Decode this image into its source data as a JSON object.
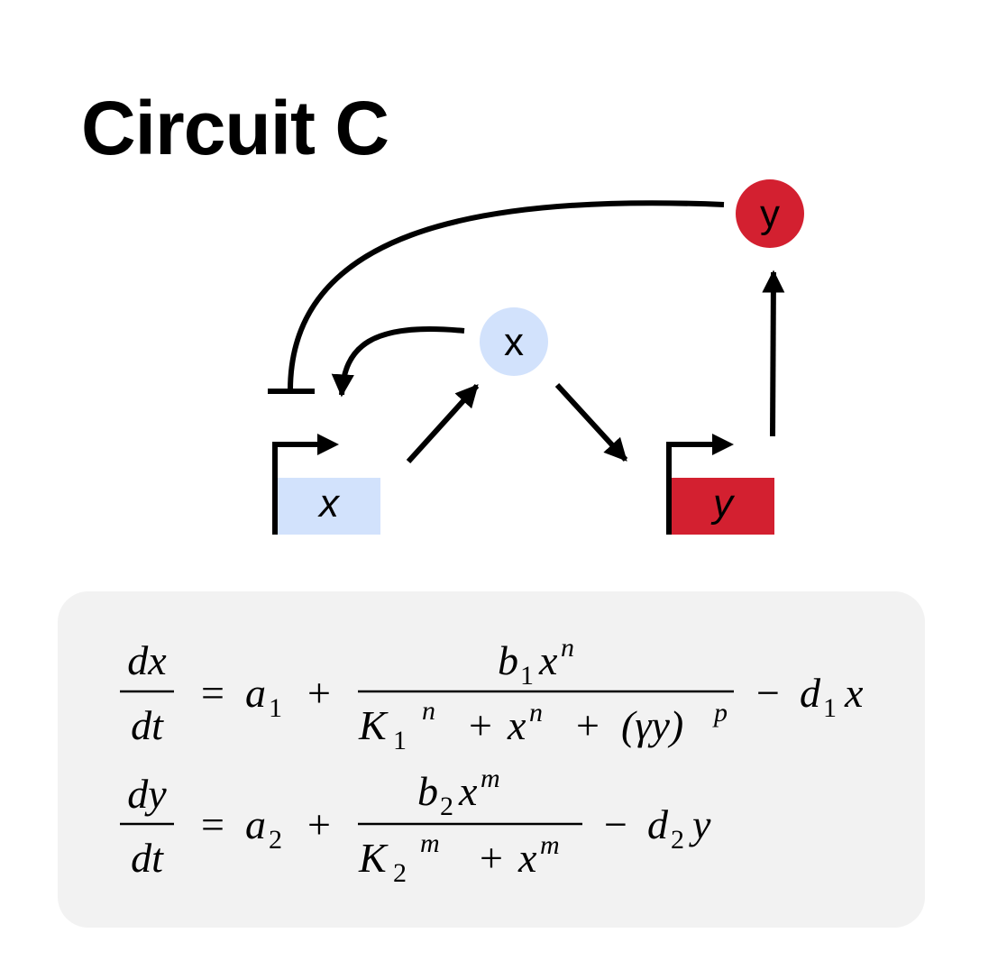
{
  "title": "Circuit C",
  "colors": {
    "x_fill": "#d2e2fc",
    "y_fill": "#d32030",
    "equation_box": "#f2f2f2",
    "line": "#000000"
  },
  "nodes": {
    "protein_x": {
      "label": "x"
    },
    "protein_y": {
      "label": "y"
    },
    "gene_x": {
      "label": "x"
    },
    "gene_y": {
      "label": "y"
    }
  },
  "equations": {
    "eq1": {
      "lhs_num": "dx",
      "lhs_den": "dt",
      "equals": "=",
      "a_base": "a",
      "a_sub": "1",
      "plus": "+",
      "num_b": "b",
      "num_b_sub": "1",
      "num_x": "x",
      "num_exp": "n",
      "den_K": "K",
      "den_K_sub": "1",
      "den_K_exp": "n",
      "den_plus1": "+",
      "den_x": "x",
      "den_x_exp": "n",
      "den_plus2": "+",
      "den_paren": "(γy)",
      "den_paren_exp": "p",
      "minus": "−",
      "d_base": "d",
      "d_sub": "1",
      "d_var": "x"
    },
    "eq2": {
      "lhs_num": "dy",
      "lhs_den": "dt",
      "equals": "=",
      "a_base": "a",
      "a_sub": "2",
      "plus": "+",
      "num_b": "b",
      "num_b_sub": "2",
      "num_x": "x",
      "num_exp": "m",
      "den_K": "K",
      "den_K_sub": "2",
      "den_K_exp": "m",
      "den_plus1": "+",
      "den_x": "x",
      "den_x_exp": "m",
      "minus": "−",
      "d_base": "d",
      "d_sub": "2",
      "d_var": "y"
    }
  }
}
